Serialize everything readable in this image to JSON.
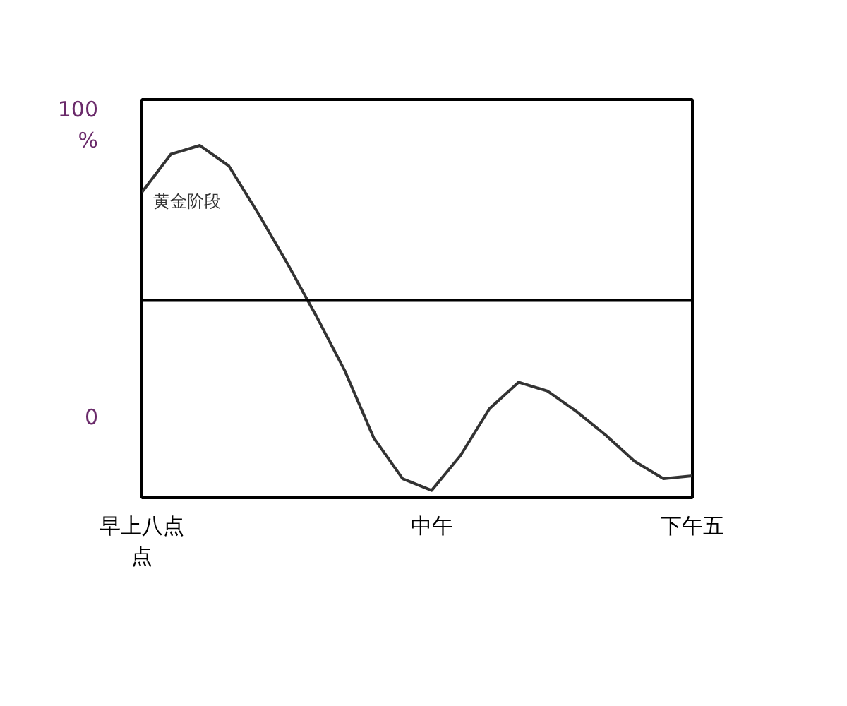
{
  "chart_data": {
    "type": "line",
    "categories": [
      "早上八点点",
      null,
      null,
      null,
      null,
      null,
      null,
      null,
      null,
      null,
      "中午",
      null,
      null,
      null,
      null,
      null,
      null,
      null,
      null,
      "下午五"
    ],
    "values": [
      77,
      90,
      93,
      86,
      70,
      53,
      35,
      16,
      -7,
      -21,
      -25,
      -13,
      3,
      12,
      9,
      2,
      -6,
      -15,
      -21,
      -20
    ],
    "color": "#333333",
    "ylim": [
      -27.5,
      108.7
    ],
    "yticks": [
      {
        "value": 0,
        "label": "0"
      },
      {
        "value": 100,
        "label": "100\n%"
      }
    ],
    "ref_lines": [
      {
        "axis": "y",
        "value": 40,
        "color": "#000000"
      }
    ],
    "annotations": [
      "黄金阶段"
    ],
    "grid": false,
    "marker": "none",
    "line_style": "solid"
  }
}
